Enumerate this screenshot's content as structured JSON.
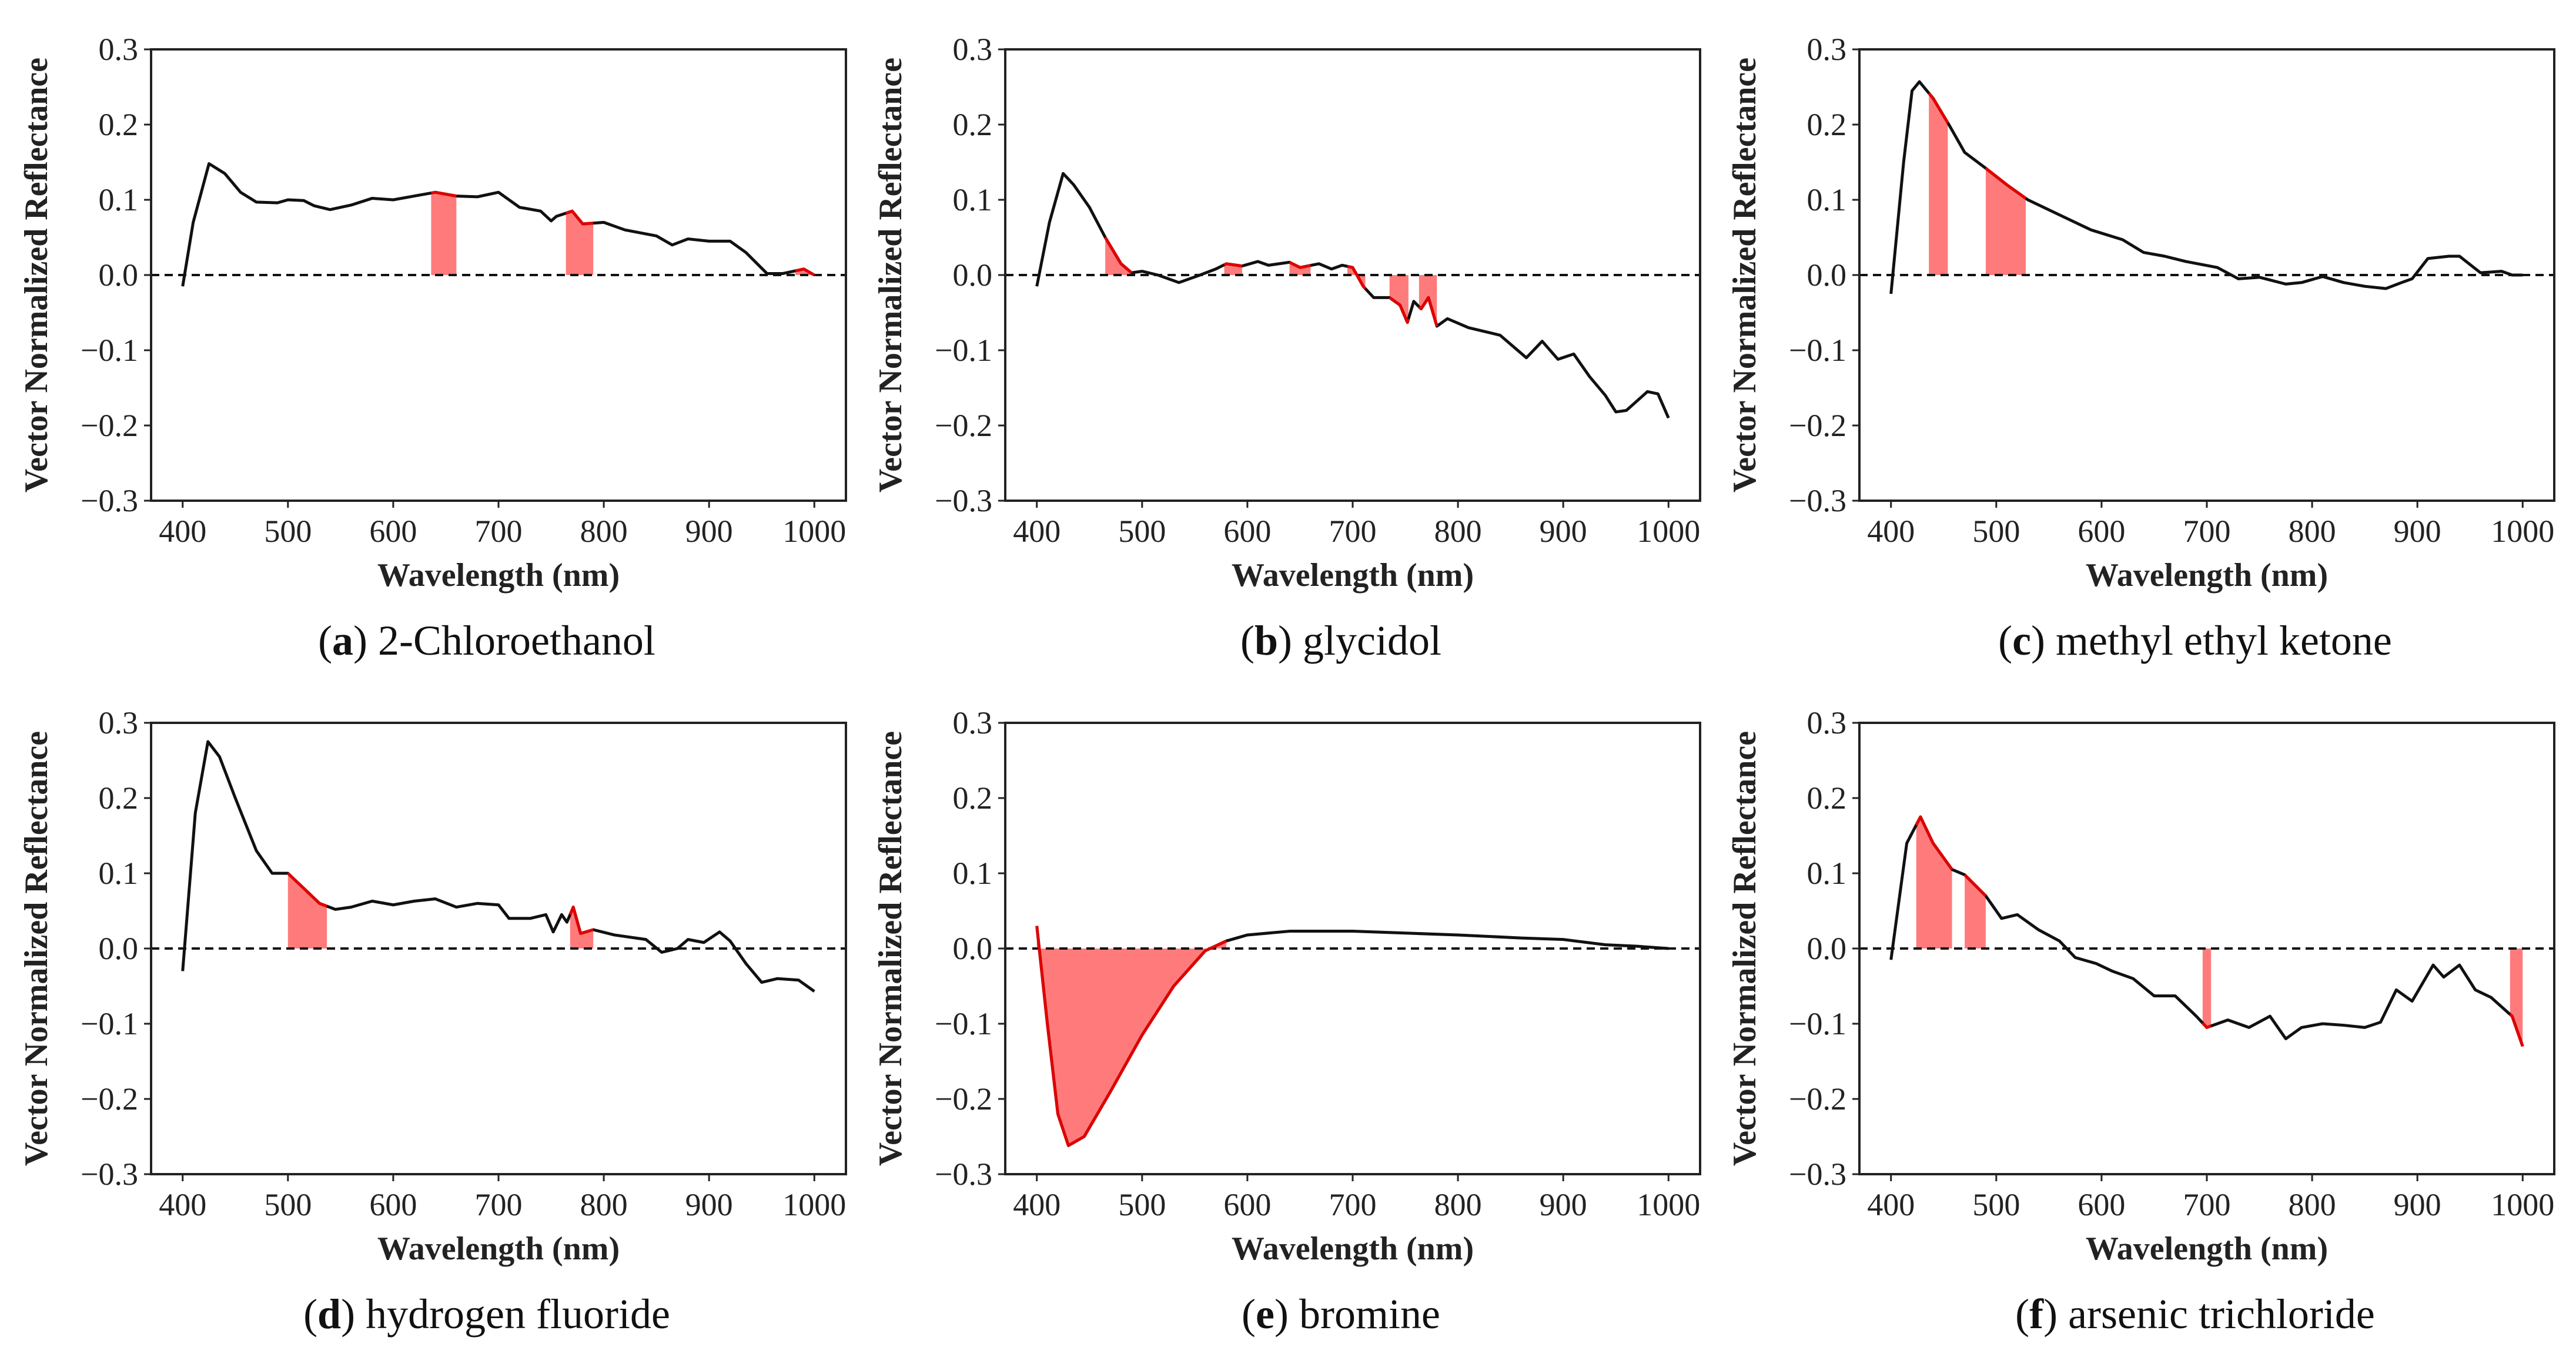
{
  "colors": {
    "line": "#111111",
    "highlight_line": "#e00000",
    "highlight_fill": "#ff7b7b",
    "zero_line": "#111111"
  },
  "chart_data": [
    {
      "type": "line",
      "panel": "a",
      "title": "2-Chloroethanol",
      "xlabel": "Wavelength (nm)",
      "ylabel": "Vector Normalized Reflectance",
      "xlim": [
        370,
        1030
      ],
      "ylim": [
        -0.3,
        0.3
      ],
      "xticks": [
        400,
        500,
        600,
        700,
        800,
        900,
        1000
      ],
      "yticks": [
        "0.3",
        "0.2",
        "0.1",
        "0.0",
        "−0.1",
        "−0.2",
        "−0.3"
      ],
      "series": [
        {
          "name": "spectrum",
          "points": [
            [
              400,
              -0.015
            ],
            [
              410,
              0.07
            ],
            [
              425,
              0.148
            ],
            [
              440,
              0.135
            ],
            [
              455,
              0.11
            ],
            [
              470,
              0.097
            ],
            [
              490,
              0.096
            ],
            [
              500,
              0.1
            ],
            [
              515,
              0.099
            ],
            [
              525,
              0.092
            ],
            [
              540,
              0.087
            ],
            [
              560,
              0.093
            ],
            [
              580,
              0.102
            ],
            [
              600,
              0.1
            ],
            [
              620,
              0.105
            ],
            [
              640,
              0.11
            ],
            [
              660,
              0.105
            ],
            [
              680,
              0.104
            ],
            [
              700,
              0.11
            ],
            [
              710,
              0.1
            ],
            [
              720,
              0.09
            ],
            [
              740,
              0.085
            ],
            [
              750,
              0.072
            ],
            [
              755,
              0.078
            ],
            [
              770,
              0.085
            ],
            [
              780,
              0.068
            ],
            [
              800,
              0.07
            ],
            [
              820,
              0.06
            ],
            [
              850,
              0.052
            ],
            [
              865,
              0.04
            ],
            [
              880,
              0.048
            ],
            [
              900,
              0.045
            ],
            [
              920,
              0.045
            ],
            [
              935,
              0.03
            ],
            [
              955,
              0.002
            ],
            [
              970,
              0.002
            ],
            [
              990,
              0.008
            ],
            [
              1000,
              0.0
            ]
          ]
        }
      ],
      "highlight_ranges": [
        [
          636,
          660
        ],
        [
          764,
          790
        ],
        [
          982,
          1000
        ]
      ]
    },
    {
      "type": "line",
      "panel": "b",
      "title": "glycidol",
      "xlabel": "Wavelength (nm)",
      "ylabel": "Vector Normalized Reflectance",
      "xlim": [
        370,
        1030
      ],
      "ylim": [
        -0.3,
        0.3
      ],
      "xticks": [
        400,
        500,
        600,
        700,
        800,
        900,
        1000
      ],
      "yticks": [
        "0.3",
        "0.2",
        "0.1",
        "0.0",
        "−0.1",
        "−0.2",
        "−0.3"
      ],
      "series": [
        {
          "name": "spectrum",
          "points": [
            [
              400,
              -0.015
            ],
            [
              412,
              0.07
            ],
            [
              425,
              0.135
            ],
            [
              435,
              0.12
            ],
            [
              450,
              0.09
            ],
            [
              465,
              0.05
            ],
            [
              480,
              0.015
            ],
            [
              490,
              0.003
            ],
            [
              500,
              0.005
            ],
            [
              515,
              0.0
            ],
            [
              535,
              -0.01
            ],
            [
              555,
              0.0
            ],
            [
              570,
              0.008
            ],
            [
              580,
              0.015
            ],
            [
              595,
              0.012
            ],
            [
              610,
              0.018
            ],
            [
              620,
              0.013
            ],
            [
              640,
              0.017
            ],
            [
              650,
              0.01
            ],
            [
              668,
              0.015
            ],
            [
              680,
              0.008
            ],
            [
              690,
              0.013
            ],
            [
              700,
              0.01
            ],
            [
              710,
              -0.015
            ],
            [
              720,
              -0.03
            ],
            [
              735,
              -0.03
            ],
            [
              745,
              -0.04
            ],
            [
              752,
              -0.063
            ],
            [
              758,
              -0.035
            ],
            [
              765,
              -0.045
            ],
            [
              772,
              -0.03
            ],
            [
              780,
              -0.068
            ],
            [
              790,
              -0.058
            ],
            [
              810,
              -0.07
            ],
            [
              840,
              -0.08
            ],
            [
              865,
              -0.11
            ],
            [
              880,
              -0.088
            ],
            [
              895,
              -0.112
            ],
            [
              910,
              -0.105
            ],
            [
              925,
              -0.135
            ],
            [
              940,
              -0.16
            ],
            [
              950,
              -0.182
            ],
            [
              960,
              -0.18
            ],
            [
              980,
              -0.155
            ],
            [
              990,
              -0.158
            ],
            [
              1000,
              -0.19
            ]
          ]
        }
      ],
      "highlight_ranges": [
        [
          465,
          490
        ],
        [
          578,
          595
        ],
        [
          640,
          660
        ],
        [
          695,
          712
        ],
        [
          735,
          753
        ],
        [
          763,
          780
        ]
      ]
    },
    {
      "type": "line",
      "panel": "c",
      "title": "methyl ethyl ketone",
      "xlabel": "Wavelength (nm)",
      "ylabel": "Vector Normalized Reflectance",
      "xlim": [
        370,
        1030
      ],
      "ylim": [
        -0.3,
        0.3
      ],
      "xticks": [
        400,
        500,
        600,
        700,
        800,
        900,
        1000
      ],
      "yticks": [
        "0.3",
        "0.2",
        "0.1",
        "0.0",
        "−0.1",
        "−0.2",
        "−0.3"
      ],
      "series": [
        {
          "name": "spectrum",
          "points": [
            [
              400,
              -0.025
            ],
            [
              412,
              0.15
            ],
            [
              420,
              0.245
            ],
            [
              427,
              0.257
            ],
            [
              440,
              0.235
            ],
            [
              455,
              0.2
            ],
            [
              470,
              0.163
            ],
            [
              490,
              0.142
            ],
            [
              510,
              0.12
            ],
            [
              530,
              0.1
            ],
            [
              560,
              0.08
            ],
            [
              590,
              0.06
            ],
            [
              620,
              0.047
            ],
            [
              640,
              0.03
            ],
            [
              660,
              0.025
            ],
            [
              680,
              0.018
            ],
            [
              710,
              0.01
            ],
            [
              730,
              -0.005
            ],
            [
              750,
              -0.003
            ],
            [
              775,
              -0.012
            ],
            [
              790,
              -0.01
            ],
            [
              810,
              -0.002
            ],
            [
              830,
              -0.01
            ],
            [
              850,
              -0.015
            ],
            [
              870,
              -0.018
            ],
            [
              885,
              -0.01
            ],
            [
              895,
              -0.005
            ],
            [
              910,
              0.022
            ],
            [
              930,
              0.025
            ],
            [
              940,
              0.025
            ],
            [
              960,
              0.003
            ],
            [
              980,
              0.005
            ],
            [
              990,
              0.0
            ],
            [
              1000,
              0.0
            ]
          ]
        }
      ],
      "highlight_ranges": [
        [
          436,
          454
        ],
        [
          490,
          528
        ]
      ]
    },
    {
      "type": "line",
      "panel": "d",
      "title": "hydrogen fluoride",
      "xlabel": "Wavelength (nm)",
      "ylabel": "Vector Normalized Reflectance",
      "xlim": [
        370,
        1030
      ],
      "ylim": [
        -0.3,
        0.3
      ],
      "xticks": [
        400,
        500,
        600,
        700,
        800,
        900,
        1000
      ],
      "yticks": [
        "0.3",
        "0.2",
        "0.1",
        "0.0",
        "−0.1",
        "−0.2",
        "−0.3"
      ],
      "series": [
        {
          "name": "spectrum",
          "points": [
            [
              400,
              -0.03
            ],
            [
              412,
              0.18
            ],
            [
              424,
              0.275
            ],
            [
              435,
              0.255
            ],
            [
              450,
              0.2
            ],
            [
              470,
              0.13
            ],
            [
              485,
              0.1
            ],
            [
              500,
              0.1
            ],
            [
              515,
              0.08
            ],
            [
              530,
              0.06
            ],
            [
              545,
              0.052
            ],
            [
              560,
              0.055
            ],
            [
              580,
              0.063
            ],
            [
              600,
              0.058
            ],
            [
              620,
              0.063
            ],
            [
              640,
              0.066
            ],
            [
              660,
              0.055
            ],
            [
              680,
              0.06
            ],
            [
              700,
              0.058
            ],
            [
              710,
              0.04
            ],
            [
              730,
              0.04
            ],
            [
              745,
              0.045
            ],
            [
              752,
              0.022
            ],
            [
              760,
              0.045
            ],
            [
              765,
              0.035
            ],
            [
              771,
              0.055
            ],
            [
              778,
              0.02
            ],
            [
              790,
              0.025
            ],
            [
              810,
              0.018
            ],
            [
              840,
              0.012
            ],
            [
              855,
              -0.005
            ],
            [
              870,
              0.0
            ],
            [
              880,
              0.012
            ],
            [
              895,
              0.008
            ],
            [
              910,
              0.022
            ],
            [
              920,
              0.01
            ],
            [
              935,
              -0.02
            ],
            [
              950,
              -0.045
            ],
            [
              965,
              -0.04
            ],
            [
              985,
              -0.042
            ],
            [
              1000,
              -0.057
            ]
          ]
        }
      ],
      "highlight_ranges": [
        [
          500,
          537
        ],
        [
          768,
          790
        ]
      ]
    },
    {
      "type": "line",
      "panel": "e",
      "title": "bromine",
      "xlabel": "Wavelength (nm)",
      "ylabel": "Vector Normalized Reflectance",
      "xlim": [
        370,
        1030
      ],
      "ylim": [
        -0.3,
        0.3
      ],
      "xticks": [
        400,
        500,
        600,
        700,
        800,
        900,
        1000
      ],
      "yticks": [
        "0.3",
        "0.2",
        "0.1",
        "0.0",
        "−0.1",
        "−0.2",
        "−0.3"
      ],
      "series": [
        {
          "name": "spectrum",
          "points": [
            [
              400,
              0.03
            ],
            [
              410,
              -0.1
            ],
            [
              420,
              -0.22
            ],
            [
              430,
              -0.262
            ],
            [
              445,
              -0.25
            ],
            [
              470,
              -0.19
            ],
            [
              500,
              -0.115
            ],
            [
              530,
              -0.05
            ],
            [
              560,
              -0.003
            ],
            [
              580,
              0.01
            ],
            [
              600,
              0.018
            ],
            [
              640,
              0.023
            ],
            [
              700,
              0.023
            ],
            [
              760,
              0.02
            ],
            [
              800,
              0.018
            ],
            [
              860,
              0.014
            ],
            [
              900,
              0.012
            ],
            [
              940,
              0.005
            ],
            [
              970,
              0.003
            ],
            [
              1000,
              0.0
            ]
          ]
        }
      ],
      "highlight_ranges": [
        [
          400,
          580
        ]
      ]
    },
    {
      "type": "line",
      "panel": "f",
      "title": "arsenic trichloride",
      "xlabel": "Wavelength (nm)",
      "ylabel": "Vector Normalized Reflectance",
      "xlim": [
        370,
        1030
      ],
      "ylim": [
        -0.3,
        0.3
      ],
      "xticks": [
        400,
        500,
        600,
        700,
        800,
        900,
        1000
      ],
      "yticks": [
        "0.3",
        "0.2",
        "0.1",
        "0.0",
        "−0.1",
        "−0.2",
        "−0.3"
      ],
      "series": [
        {
          "name": "spectrum",
          "points": [
            [
              400,
              -0.015
            ],
            [
              415,
              0.14
            ],
            [
              428,
              0.175
            ],
            [
              440,
              0.14
            ],
            [
              458,
              0.105
            ],
            [
              470,
              0.098
            ],
            [
              490,
              0.07
            ],
            [
              505,
              0.04
            ],
            [
              520,
              0.045
            ],
            [
              540,
              0.025
            ],
            [
              560,
              0.01
            ],
            [
              575,
              -0.012
            ],
            [
              595,
              -0.02
            ],
            [
              610,
              -0.03
            ],
            [
              630,
              -0.04
            ],
            [
              650,
              -0.063
            ],
            [
              670,
              -0.063
            ],
            [
              690,
              -0.09
            ],
            [
              700,
              -0.105
            ],
            [
              720,
              -0.095
            ],
            [
              740,
              -0.105
            ],
            [
              760,
              -0.09
            ],
            [
              775,
              -0.12
            ],
            [
              790,
              -0.105
            ],
            [
              810,
              -0.1
            ],
            [
              830,
              -0.102
            ],
            [
              850,
              -0.105
            ],
            [
              865,
              -0.098
            ],
            [
              880,
              -0.055
            ],
            [
              895,
              -0.07
            ],
            [
              915,
              -0.022
            ],
            [
              925,
              -0.038
            ],
            [
              940,
              -0.022
            ],
            [
              955,
              -0.055
            ],
            [
              970,
              -0.065
            ],
            [
              990,
              -0.09
            ],
            [
              1000,
              -0.13
            ]
          ]
        }
      ],
      "highlight_ranges": [
        [
          424,
          458
        ],
        [
          470,
          490
        ],
        [
          696,
          704
        ],
        [
          988,
          1000
        ]
      ]
    }
  ]
}
